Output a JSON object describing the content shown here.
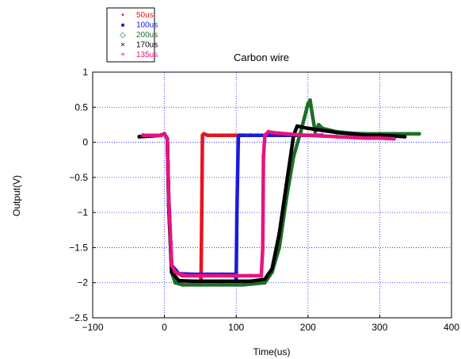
{
  "chart_data": {
    "type": "scatter",
    "title": "Carbon wire",
    "xlabel": "Time(us)",
    "ylabel": "Output(V)",
    "xlim": [
      -100,
      400
    ],
    "ylim": [
      -2.5,
      1
    ],
    "x_ticks": [
      -100,
      0,
      100,
      200,
      300,
      400
    ],
    "x_tick_labels": [
      "−100",
      "0",
      "100",
      "200",
      "300",
      "400"
    ],
    "y_ticks": [
      1,
      0.5,
      0,
      -0.5,
      -1,
      -1.5,
      -2,
      -2.5
    ],
    "y_tick_labels": [
      "1",
      "0.5",
      "0",
      "−0.5",
      "−1",
      "−1.5",
      "−2",
      "−2.5"
    ],
    "grid": true,
    "legend_position": "top-left, outside plot",
    "series": [
      {
        "name": "50us",
        "marker": "•",
        "color": "#e8141e",
        "x": [
          -30,
          -5,
          0,
          4,
          6,
          10,
          15,
          25,
          35,
          45,
          50,
          51,
          52,
          53,
          55,
          60,
          70,
          80,
          90,
          100,
          105,
          110,
          120,
          130,
          140,
          150,
          160
        ],
        "y": [
          0.1,
          0.1,
          0.12,
          0.05,
          -0.8,
          -1.75,
          -1.85,
          -1.9,
          -1.9,
          -1.9,
          -1.9,
          -1.95,
          -1.0,
          0.1,
          0.12,
          0.1,
          0.1,
          0.1,
          0.1,
          0.1,
          0.1,
          0.1,
          0.1,
          0.1,
          0.1,
          0.1,
          0.1
        ]
      },
      {
        "name": "100us",
        "marker": "●",
        "color": "#1a1adc",
        "x": [
          -30,
          -5,
          0,
          4,
          6,
          10,
          20,
          40,
          60,
          80,
          98,
          100,
          101,
          103,
          105,
          110,
          120,
          140,
          160,
          180,
          200,
          220
        ],
        "y": [
          0.1,
          0.1,
          0.12,
          0.05,
          -0.8,
          -1.75,
          -1.87,
          -1.88,
          -1.88,
          -1.88,
          -1.88,
          -1.95,
          -1.0,
          0.08,
          0.1,
          0.1,
          0.1,
          0.1,
          0.1,
          0.1,
          0.1,
          0.1
        ]
      },
      {
        "name": "200us",
        "marker": "◇",
        "color": "#1e6e28",
        "x": [
          -35,
          -5,
          0,
          4,
          6,
          10,
          15,
          25,
          50,
          80,
          110,
          140,
          150,
          160,
          170,
          180,
          190,
          195,
          200,
          203,
          206,
          210,
          215,
          220,
          240,
          260,
          280,
          300,
          320,
          340,
          355
        ],
        "y": [
          0.08,
          0.1,
          0.12,
          0.05,
          -0.9,
          -1.85,
          -2.0,
          -2.03,
          -2.03,
          -2.03,
          -2.03,
          -2.0,
          -1.85,
          -1.5,
          -0.8,
          -0.2,
          0.15,
          0.35,
          0.55,
          0.6,
          0.4,
          0.15,
          0.25,
          0.2,
          0.15,
          0.13,
          0.12,
          0.12,
          0.12,
          0.12,
          0.12
        ]
      },
      {
        "name": "170us",
        "marker": "×",
        "color": "#000000",
        "x": [
          -35,
          -5,
          0,
          4,
          6,
          10,
          20,
          40,
          80,
          120,
          140,
          150,
          160,
          170,
          180,
          185,
          190,
          200,
          220,
          240,
          260,
          280,
          300,
          320,
          335
        ],
        "y": [
          0.08,
          0.1,
          0.12,
          0.05,
          -0.9,
          -1.85,
          -1.97,
          -1.98,
          -1.98,
          -1.98,
          -1.95,
          -1.8,
          -1.3,
          -0.6,
          0.1,
          0.23,
          0.22,
          0.2,
          0.17,
          0.14,
          0.12,
          0.1,
          0.1,
          0.09,
          0.08
        ]
      },
      {
        "name": "135us",
        "marker": "+",
        "color": "#e8147d",
        "x": [
          -30,
          -5,
          0,
          4,
          6,
          10,
          15,
          30,
          60,
          90,
          120,
          135,
          137,
          138,
          140,
          145,
          150,
          160,
          170,
          180,
          200,
          220,
          240,
          260,
          280,
          300,
          320
        ],
        "y": [
          0.1,
          0.1,
          0.12,
          0.05,
          -0.8,
          -1.75,
          -1.85,
          -1.9,
          -1.9,
          -1.9,
          -1.9,
          -1.9,
          -1.5,
          -0.2,
          0.1,
          0.15,
          0.14,
          0.13,
          0.12,
          0.11,
          0.1,
          0.09,
          0.08,
          0.07,
          0.06,
          0.06,
          0.05
        ]
      }
    ]
  }
}
